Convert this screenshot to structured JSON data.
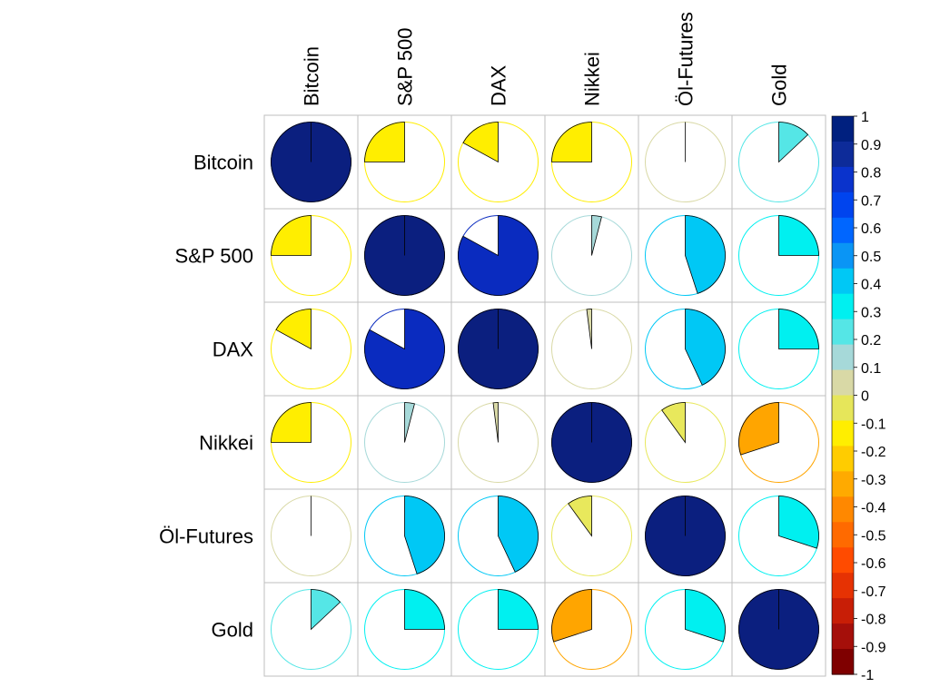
{
  "chart_data": {
    "type": "heatmap",
    "subtype": "correlation-matrix-pie",
    "variables": [
      "Bitcoin",
      "S&P 500",
      "DAX",
      "Nikkei",
      "Öl-Futures",
      "Gold"
    ],
    "matrix": [
      [
        1.0,
        -0.25,
        -0.17,
        -0.25,
        0.0,
        0.13
      ],
      [
        -0.25,
        1.0,
        0.83,
        0.04,
        0.45,
        0.25
      ],
      [
        -0.17,
        0.83,
        1.0,
        -0.02,
        0.43,
        0.25
      ],
      [
        -0.25,
        0.04,
        -0.02,
        1.0,
        -0.1,
        -0.3
      ],
      [
        0.0,
        0.45,
        0.43,
        -0.1,
        1.0,
        0.3
      ],
      [
        0.13,
        0.25,
        0.25,
        -0.3,
        0.3,
        1.0
      ]
    ],
    "colorbar": {
      "range": [
        -1,
        1
      ],
      "ticks": [
        "1",
        "0.9",
        "0.8",
        "0.7",
        "0.6",
        "0.5",
        "0.4",
        "0.3",
        "0.2",
        "0.1",
        "0",
        "-0.1",
        "-0.2",
        "-0.3",
        "-0.4",
        "-0.5",
        "-0.6",
        "-0.7",
        "-0.8",
        "-0.9",
        "-1"
      ],
      "colors": [
        "#7F0000",
        "#A50F0A",
        "#C81E06",
        "#E63203",
        "#FF4B00",
        "#FF6A00",
        "#FF8800",
        "#FFAA00",
        "#FFCC00",
        "#FFEE00",
        "#E6E65A",
        "#D9D9A6",
        "#A6D9D9",
        "#55E6E6",
        "#00F0F0",
        "#00C8F5",
        "#0A95F5",
        "#0066FF",
        "#0044EE",
        "#0A33CC",
        "#0D2B99",
        "#00207F"
      ]
    },
    "grid": true,
    "legend": "right"
  }
}
